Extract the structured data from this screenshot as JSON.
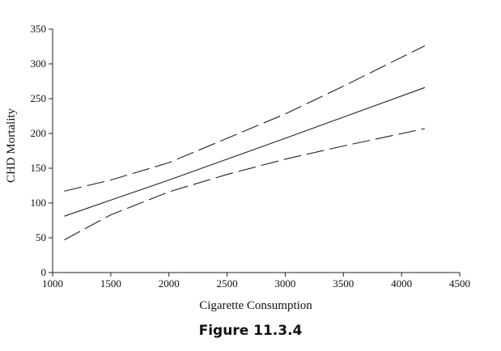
{
  "chart_data": {
    "type": "line",
    "xlabel": "Cigarette Consumption",
    "ylabel": "CHD Mortality",
    "xlim": [
      1000,
      4500
    ],
    "ylim": [
      0,
      350
    ],
    "xticks": [
      1000,
      1500,
      2000,
      2500,
      3000,
      3500,
      4000,
      4500
    ],
    "yticks": [
      0,
      50,
      100,
      150,
      200,
      250,
      300,
      350
    ],
    "grid": false,
    "legend": "none",
    "series": [
      {
        "style": "dashed",
        "x": [
          1100,
          1500,
          2000,
          2500,
          3000,
          3500,
          4200
        ],
        "y": [
          117,
          133,
          158,
          193,
          228,
          268,
          326
        ]
      },
      {
        "style": "solid",
        "x": [
          1100,
          2000,
          3000,
          4200
        ],
        "y": [
          81,
          133,
          193,
          266
        ]
      },
      {
        "style": "dashed",
        "x": [
          1100,
          1500,
          2000,
          2500,
          3000,
          3500,
          4200
        ],
        "y": [
          47,
          83,
          116,
          141,
          163,
          182,
          207
        ]
      }
    ]
  },
  "caption": "Figure 11.3.4"
}
